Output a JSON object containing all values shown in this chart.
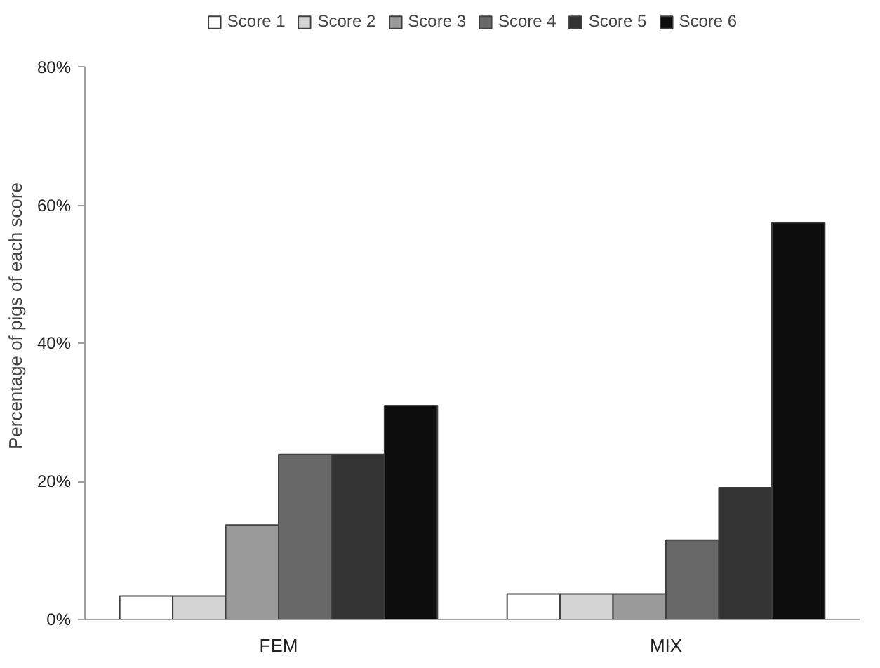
{
  "chart_data": {
    "type": "bar",
    "categories": [
      "FEM",
      "MIX"
    ],
    "ylabel": "Percentage of pigs of each score",
    "ylim": [
      0,
      80
    ],
    "yticks": [
      {
        "value": 0,
        "label": "0%"
      },
      {
        "value": 20,
        "label": "20%"
      },
      {
        "value": 40,
        "label": "40%"
      },
      {
        "value": 60,
        "label": "60%"
      },
      {
        "value": 80,
        "label": "80%"
      }
    ],
    "series": [
      {
        "name": "Score 1",
        "color": "#ffffff",
        "values": [
          3.4,
          3.7
        ]
      },
      {
        "name": "Score 2",
        "color": "#d4d4d4",
        "values": [
          3.4,
          3.7
        ]
      },
      {
        "name": "Score 3",
        "color": "#9a9a9a",
        "values": [
          13.7,
          3.7
        ]
      },
      {
        "name": "Score 4",
        "color": "#686868",
        "values": [
          23.9,
          11.5
        ]
      },
      {
        "name": "Score 5",
        "color": "#333333",
        "values": [
          23.9,
          19.1
        ]
      },
      {
        "name": "Score 6",
        "color": "#0d0d0d",
        "values": [
          31,
          57.5
        ]
      }
    ],
    "grid": false,
    "legend": "top"
  }
}
